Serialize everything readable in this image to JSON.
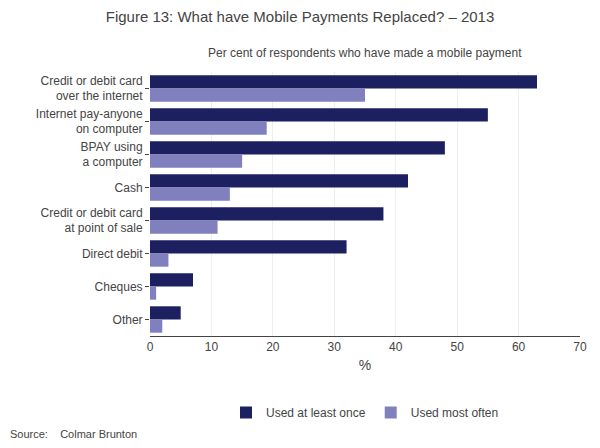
{
  "chart_data": {
    "type": "bar",
    "orientation": "horizontal",
    "title": "Figure 13: What have Mobile Payments Replaced? – 2013",
    "subtitle": "Per cent of respondents who have made a mobile payment",
    "annotations": [
      "Source:    Colmar Brunton"
    ],
    "xlabel": "%",
    "xlim": [
      0,
      70
    ],
    "xticks": [
      0,
      10,
      20,
      30,
      40,
      50,
      60,
      70
    ],
    "categories": [
      "Credit or debit card\nover the internet",
      "Internet pay-anyone\non computer",
      "BPAY using\na computer",
      "Cash",
      "Credit or debit card\nat point of sale",
      "Direct debit",
      "Cheques",
      "Other"
    ],
    "series": [
      {
        "name": "Used at least once",
        "color": "#1c2061",
        "values": [
          63,
          55,
          48,
          42,
          38,
          32,
          7,
          5
        ]
      },
      {
        "name": "Used most often",
        "color": "#8080bf",
        "values": [
          35,
          19,
          15,
          13,
          11,
          3,
          1,
          2
        ]
      }
    ],
    "grid": true,
    "legend": "bottom"
  }
}
